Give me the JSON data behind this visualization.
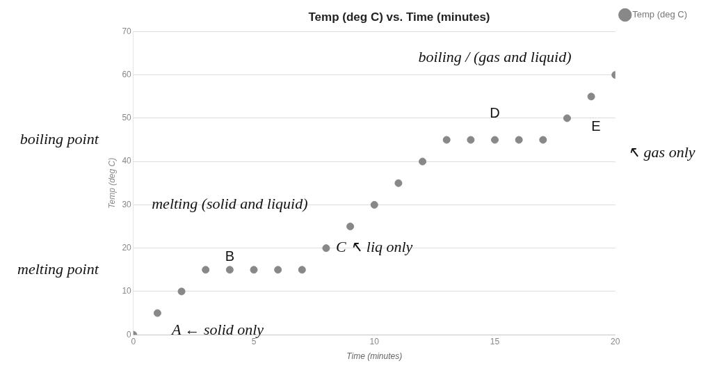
{
  "chart_data": {
    "type": "scatter",
    "title": "Temp (deg C) vs. Time (minutes)",
    "xlabel": "Time (minutes)",
    "ylabel": "Temp (deg C)",
    "x": [
      0,
      1,
      2,
      3,
      4,
      5,
      6,
      7,
      8,
      9,
      10,
      11,
      12,
      13,
      14,
      15,
      16,
      17,
      18,
      19,
      20
    ],
    "series": [
      {
        "name": "Temp (deg C)",
        "color": "#888888",
        "values": [
          0,
          5,
          10,
          15,
          15,
          15,
          15,
          15,
          20,
          25,
          30,
          35,
          40,
          45,
          45,
          45,
          45,
          45,
          50,
          55,
          60
        ]
      }
    ],
    "xlim": [
      0,
      20
    ],
    "xticks": [
      0,
      5,
      10,
      15,
      20
    ],
    "ylim": [
      0,
      70
    ],
    "yticks": [
      0,
      10,
      20,
      30,
      40,
      50,
      60,
      70
    ],
    "grid": "y",
    "legend": "top right",
    "marker": "circle",
    "annotations": [
      "boiling point",
      "melting point",
      "A ← solid only",
      "B",
      "melting (solid and liquid)",
      "C ↖ liq only",
      "D",
      "boiling / (gas and liquid)",
      "E",
      "↖ gas only"
    ]
  }
}
